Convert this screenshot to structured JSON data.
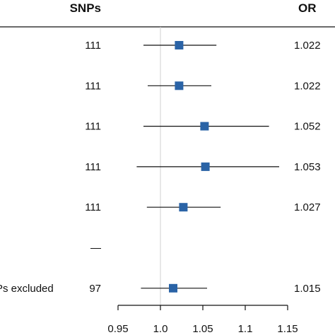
{
  "chart_data": {
    "type": "forest",
    "columns": {
      "snps_header": "SNPs",
      "or_header": "OR"
    },
    "xlim": [
      0.95,
      1.15
    ],
    "xticks": [
      "0.95",
      "1.0",
      "1.05",
      "1.1",
      "1.15"
    ],
    "reference_line": 1.0,
    "marker_color": "#2a63a6",
    "rows": [
      {
        "label": "",
        "snps": "111",
        "or": 1.022,
        "or_text": "1.022",
        "lower": 0.98,
        "upper": 1.066
      },
      {
        "label": "",
        "snps": "111",
        "or": 1.022,
        "or_text": "1.022",
        "lower": 0.985,
        "upper": 1.06
      },
      {
        "label": "",
        "snps": "111",
        "or": 1.052,
        "or_text": "1.052",
        "lower": 0.98,
        "upper": 1.128
      },
      {
        "label": "",
        "snps": "111",
        "or": 1.053,
        "or_text": "1.053",
        "lower": 0.972,
        "upper": 1.14
      },
      {
        "label": "",
        "snps": "111",
        "or": 1.027,
        "or_text": "1.027",
        "lower": 0.984,
        "upper": 1.071
      },
      {
        "label": "",
        "snps": "—",
        "or": null,
        "or_text": "",
        "lower": null,
        "upper": null
      },
      {
        "label": "Ps excluded",
        "snps": "97",
        "or": 1.015,
        "or_text": "1.015",
        "lower": 0.977,
        "upper": 1.055
      }
    ]
  }
}
